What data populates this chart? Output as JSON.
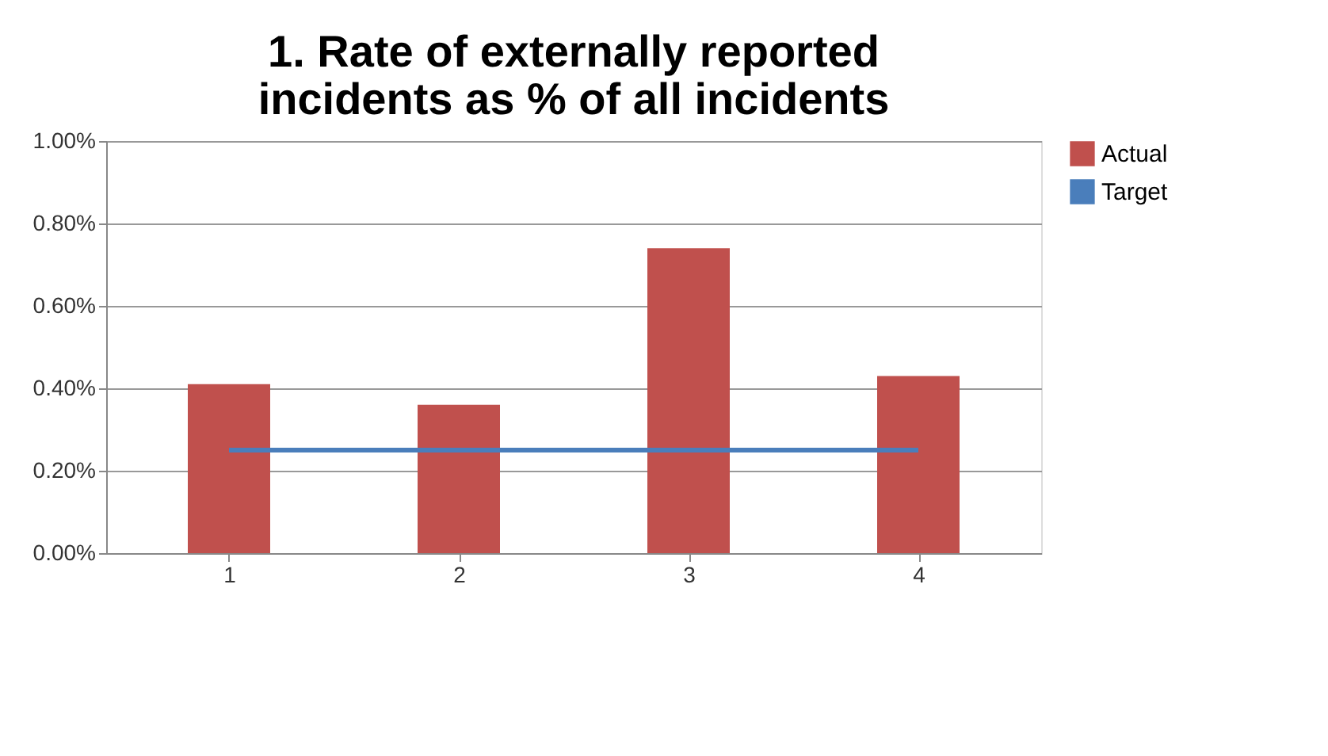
{
  "chart_data": {
    "type": "bar",
    "title": "1. Rate of externally reported incidents as % of all incidents",
    "categories": [
      "1",
      "2",
      "3",
      "4"
    ],
    "series": [
      {
        "name": "Actual",
        "color": "#c0504d",
        "values": [
          0.41,
          0.36,
          0.74,
          0.43
        ]
      },
      {
        "name": "Target",
        "type": "line",
        "color": "#4a7ebb",
        "values": [
          0.25,
          0.25,
          0.25,
          0.25
        ]
      }
    ],
    "ylim": [
      0,
      1
    ],
    "yticks": [
      {
        "value": 0,
        "label": "0.00%"
      },
      {
        "value": 0.2,
        "label": "0.20%"
      },
      {
        "value": 0.4,
        "label": "0.40%"
      },
      {
        "value": 0.6,
        "label": "0.60%"
      },
      {
        "value": 0.8,
        "label": "0.80%"
      },
      {
        "value": 1,
        "label": "1.00%"
      }
    ],
    "grid": "y",
    "legend": "right",
    "marker": "none"
  }
}
